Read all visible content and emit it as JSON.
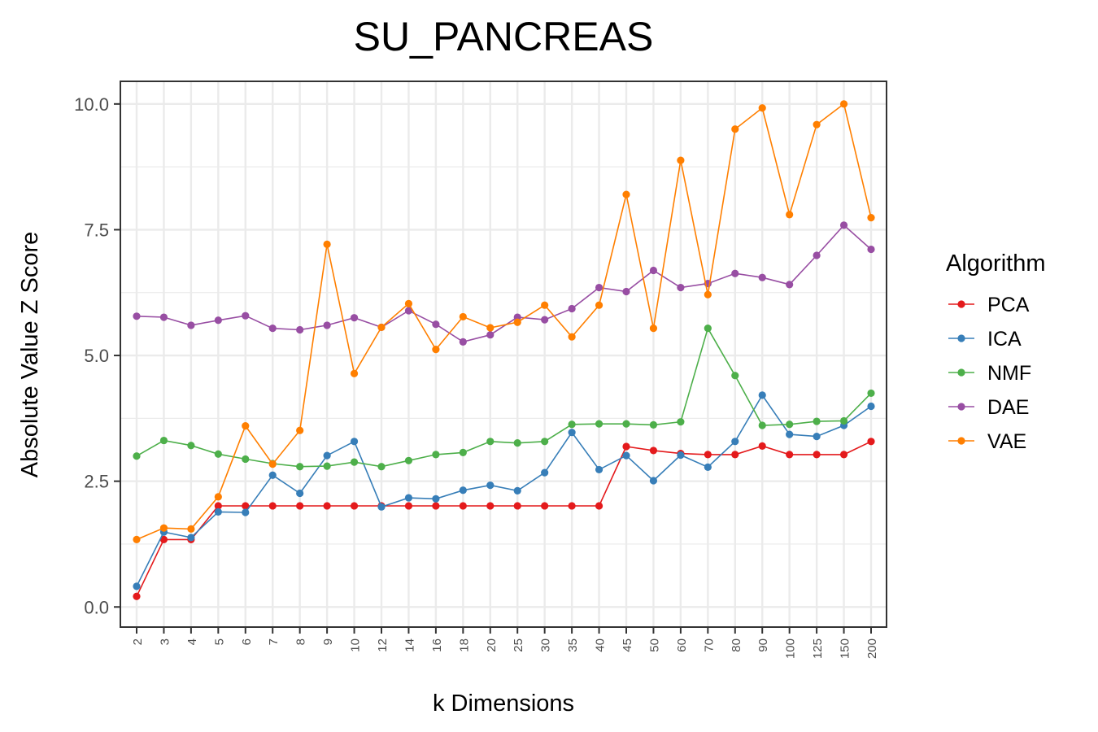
{
  "chart_data": {
    "type": "line",
    "title": "SU_PANCREAS",
    "xlabel": "k Dimensions",
    "ylabel": "Absolute Value Z Score",
    "categories": [
      "2",
      "3",
      "4",
      "5",
      "6",
      "7",
      "8",
      "9",
      "10",
      "12",
      "14",
      "16",
      "18",
      "20",
      "25",
      "30",
      "35",
      "40",
      "45",
      "50",
      "60",
      "70",
      "80",
      "90",
      "100",
      "125",
      "150",
      "200"
    ],
    "ylim": [
      -0.4,
      10.45
    ],
    "yticks": [
      0.0,
      2.5,
      5.0,
      7.5,
      10.0
    ],
    "ytick_labels": [
      "0.0",
      "2.5",
      "5.0",
      "7.5",
      "10.0"
    ],
    "grid": true,
    "legend": {
      "title": "Algorithm",
      "position": "right"
    },
    "series": [
      {
        "name": "PCA",
        "color": "#e41a1c",
        "values": [
          0.21,
          1.34,
          1.34,
          2.01,
          2.01,
          2.01,
          2.01,
          2.01,
          2.01,
          2.01,
          2.01,
          2.01,
          2.01,
          2.01,
          2.01,
          2.01,
          2.01,
          2.01,
          3.19,
          3.11,
          3.05,
          3.03,
          3.03,
          3.2,
          3.03,
          3.03,
          3.03,
          3.29
        ]
      },
      {
        "name": "ICA",
        "color": "#377eb8",
        "values": [
          0.41,
          1.49,
          1.38,
          1.89,
          1.88,
          2.62,
          2.26,
          3.01,
          3.29,
          1.99,
          2.17,
          2.15,
          2.32,
          2.42,
          2.31,
          2.67,
          3.47,
          2.73,
          3.01,
          2.51,
          3.02,
          2.78,
          3.29,
          4.21,
          3.43,
          3.39,
          3.61,
          3.99
        ]
      },
      {
        "name": "NMF",
        "color": "#4daf4a",
        "values": [
          3.0,
          3.31,
          3.21,
          3.04,
          2.94,
          2.85,
          2.79,
          2.8,
          2.88,
          2.79,
          2.91,
          3.03,
          3.07,
          3.29,
          3.26,
          3.29,
          3.63,
          3.64,
          3.64,
          3.62,
          3.68,
          5.54,
          4.6,
          3.61,
          3.63,
          3.69,
          3.7,
          4.25
        ]
      },
      {
        "name": "DAE",
        "color": "#984ea3",
        "values": [
          5.78,
          5.76,
          5.6,
          5.7,
          5.79,
          5.54,
          5.51,
          5.6,
          5.75,
          5.56,
          5.89,
          5.62,
          5.27,
          5.41,
          5.76,
          5.71,
          5.93,
          6.35,
          6.27,
          6.69,
          6.35,
          6.43,
          6.63,
          6.55,
          6.41,
          6.99,
          7.59,
          7.11
        ]
      },
      {
        "name": "VAE",
        "color": "#ff7f00",
        "values": [
          1.34,
          1.57,
          1.55,
          2.19,
          3.6,
          2.84,
          3.51,
          7.21,
          4.64,
          5.56,
          6.03,
          5.12,
          5.77,
          5.55,
          5.66,
          6.0,
          5.37,
          6.0,
          8.2,
          5.54,
          8.88,
          6.21,
          9.5,
          9.92,
          7.8,
          9.59,
          10.0,
          7.74
        ]
      }
    ]
  }
}
